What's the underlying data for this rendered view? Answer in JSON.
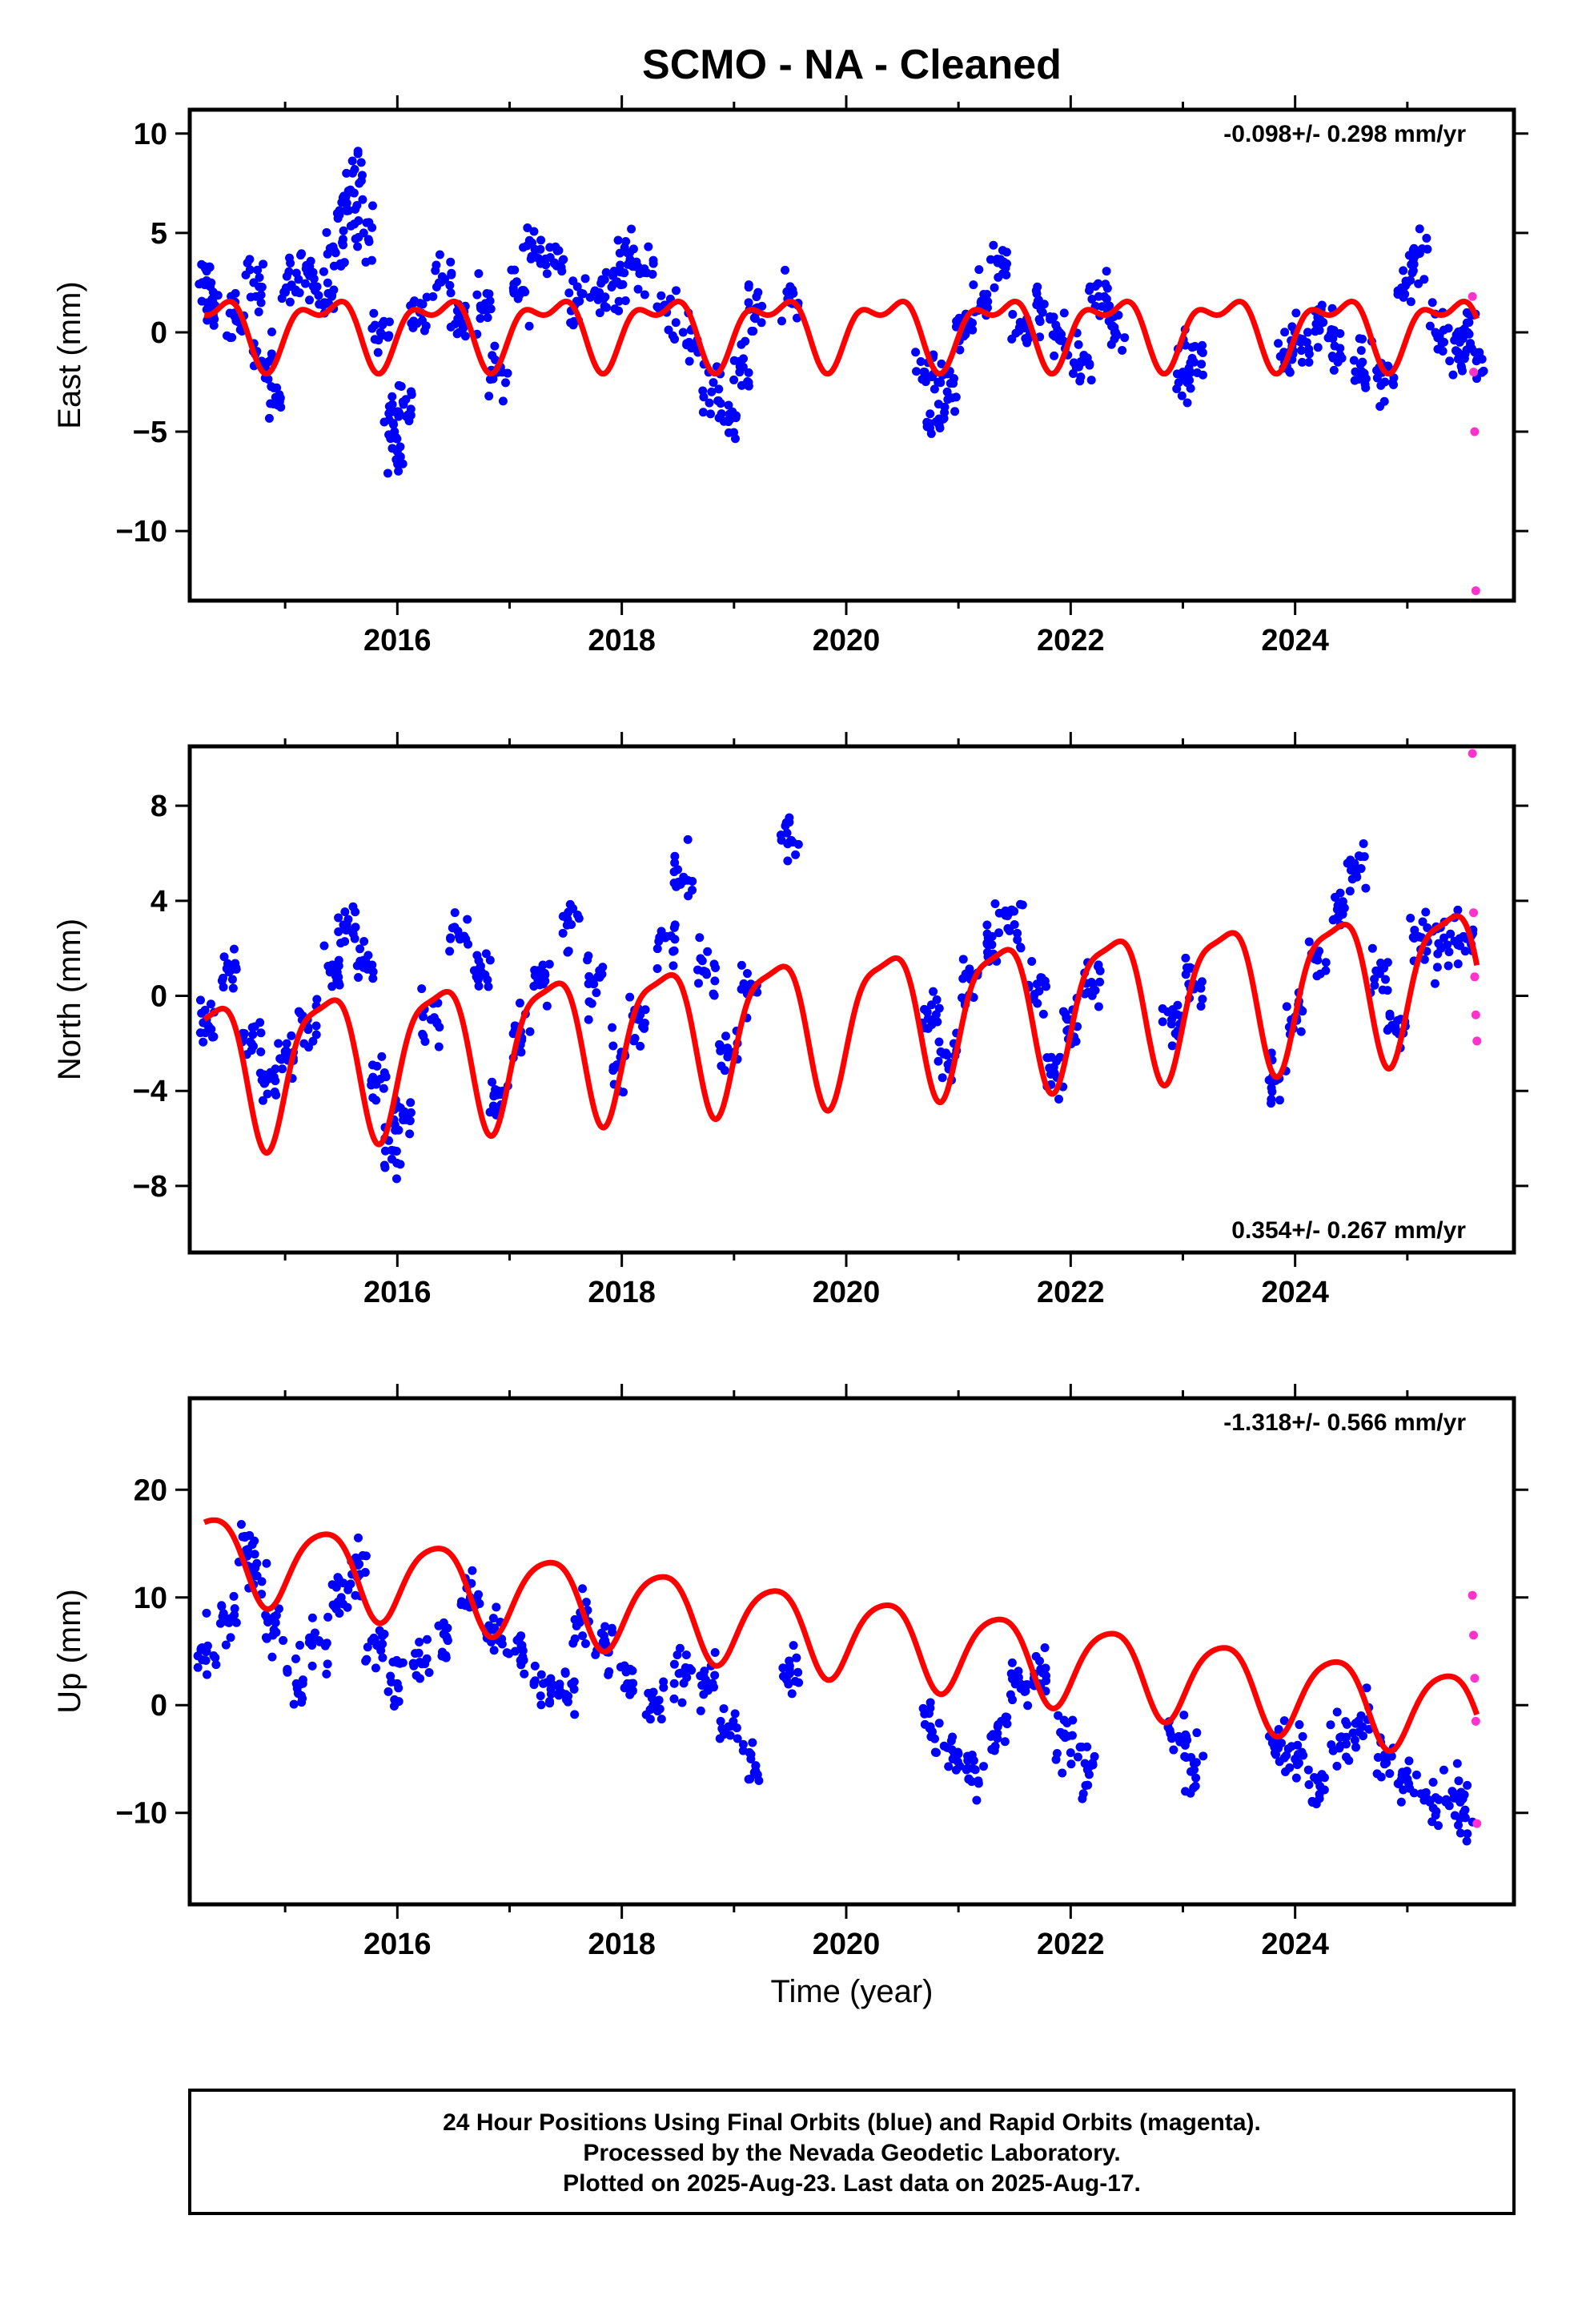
{
  "title": "SCMO  - NA - Cleaned",
  "colors": {
    "final": "#0000ff",
    "rapid": "#ff33cc",
    "model": "#ff0000",
    "frame": "#000000"
  },
  "xlabel": "Time (year)",
  "footer": {
    "line1": "24 Hour Positions Using Final Orbits (blue) and Rapid Orbits (magenta).",
    "line2": "Processed by the Nevada Geodetic Laboratory.",
    "line3": "Plotted on 2025-Aug-23. Last data on 2025-Aug-17."
  },
  "chart_data": [
    {
      "type": "scatter",
      "ylabel": "East (mm)",
      "rate_label": "-0.098+/- 0.298 mm/yr",
      "rate_position": "top-right",
      "xlim": [
        2014.15,
        2025.95
      ],
      "ylim": [
        -13.5,
        11.2
      ],
      "x_ticks": [
        2016,
        2018,
        2020,
        2022,
        2024
      ],
      "x_tick_labels": [
        "2016",
        "2018",
        "2020",
        "2022",
        "2024"
      ],
      "y_ticks": [
        10,
        5,
        0,
        -5,
        -10
      ],
      "y_tick_labels": [
        "10",
        "5",
        "0",
        "−5",
        "−10"
      ],
      "series": [
        {
          "role": "final-orbits-points",
          "x": [
            2014.3,
            2014.35,
            2014.55,
            2014.72,
            2014.8,
            2014.9,
            2015.05,
            2015.2,
            2015.35,
            2015.45,
            2015.55,
            2015.62,
            2015.7,
            2015.85,
            2015.95,
            2016.0,
            2016.05,
            2016.2,
            2016.4,
            2016.55,
            2016.75,
            2016.9,
            2017.1,
            2017.2,
            2017.4,
            2017.6,
            2017.8,
            2017.95,
            2018.05,
            2018.2,
            2018.4,
            2018.6,
            2018.8,
            2018.95,
            2019.05,
            2019.2,
            2019.5,
            2020.7,
            2020.8,
            2020.9,
            2021.05,
            2021.2,
            2021.35,
            2021.55,
            2021.75,
            2021.9,
            2022.1,
            2022.25,
            2022.4,
            2023.0,
            2023.1,
            2023.9,
            2024.05,
            2024.25,
            2024.4,
            2024.6,
            2024.8,
            2025.0,
            2025.1,
            2025.25,
            2025.45,
            2025.55,
            2025.6
          ],
          "y": [
            2.6,
            1.0,
            0.8,
            2.5,
            -1.5,
            -2.8,
            2.3,
            3.0,
            1.5,
            4.0,
            6.5,
            8.2,
            5.0,
            0.0,
            -4.0,
            -6.0,
            -3.5,
            1.0,
            2.8,
            0.5,
            1.2,
            -1.8,
            2.0,
            4.5,
            3.5,
            1.5,
            2.0,
            2.5,
            4.0,
            3.0,
            1.0,
            -0.5,
            -3.0,
            -4.5,
            -2.0,
            1.0,
            1.5,
            -2.0,
            -4.5,
            -3.0,
            0.5,
            1.5,
            3.5,
            0.5,
            1.0,
            0.0,
            -1.5,
            1.8,
            0.0,
            -2.0,
            -1.5,
            -1.0,
            -0.5,
            0.5,
            -0.8,
            -1.5,
            -2.5,
            2.5,
            4.0,
            0.0,
            -1.0,
            0.5,
            -1.0
          ]
        },
        {
          "role": "rapid-orbits-points",
          "x": [
            2025.58,
            2025.59,
            2025.6,
            2025.61
          ],
          "y": [
            1.8,
            -2.0,
            -5.0,
            -13.0
          ]
        },
        {
          "role": "seasonal-model-line",
          "amp_annual": 1.5,
          "amp_semiannual": 0.8,
          "offset": 0.2
        }
      ]
    },
    {
      "type": "scatter",
      "ylabel": "North (mm)",
      "rate_label": "0.354+/- 0.267 mm/yr",
      "rate_position": "bottom-right",
      "xlim": [
        2014.15,
        2025.95
      ],
      "ylim": [
        -10.8,
        10.5
      ],
      "x_ticks": [
        2016,
        2018,
        2020,
        2022,
        2024
      ],
      "x_tick_labels": [
        "2016",
        "2018",
        "2020",
        "2022",
        "2024"
      ],
      "y_ticks": [
        8,
        4,
        0,
        -4,
        -8
      ],
      "y_tick_labels": [
        "8",
        "4",
        "0",
        "−4",
        "−8"
      ],
      "series": [
        {
          "role": "final-orbits-points",
          "x": [
            2014.3,
            2014.5,
            2014.7,
            2014.85,
            2015.0,
            2015.2,
            2015.4,
            2015.55,
            2015.7,
            2015.85,
            2015.95,
            2016.05,
            2016.3,
            2016.55,
            2016.75,
            2016.9,
            2017.1,
            2017.3,
            2017.55,
            2017.75,
            2017.95,
            2018.15,
            2018.4,
            2018.55,
            2018.75,
            2018.95,
            2019.15,
            2019.5,
            2020.75,
            2020.9,
            2021.1,
            2021.3,
            2021.5,
            2021.7,
            2021.85,
            2022.0,
            2022.2,
            2022.9,
            2023.1,
            2023.85,
            2024.0,
            2024.2,
            2024.4,
            2024.55,
            2024.75,
            2024.9,
            2025.1,
            2025.3,
            2025.5
          ],
          "y": [
            -1.0,
            1.0,
            -2.0,
            -3.5,
            -2.5,
            -1.0,
            1.0,
            3.0,
            1.5,
            -3.5,
            -6.5,
            -5.0,
            -1.0,
            2.5,
            1.0,
            -4.0,
            -1.5,
            0.5,
            3.0,
            0.5,
            -3.0,
            -1.0,
            2.5,
            5.0,
            1.0,
            -2.5,
            0.5,
            6.5,
            -1.0,
            -2.5,
            1.0,
            2.5,
            3.0,
            0.5,
            -3.0,
            -1.0,
            0.5,
            -1.0,
            0.5,
            -3.5,
            -1.0,
            1.5,
            3.5,
            5.0,
            1.0,
            -1.5,
            2.5,
            2.0,
            2.5
          ]
        },
        {
          "role": "rapid-orbits-points",
          "x": [
            2025.58,
            2025.59,
            2025.6,
            2025.61,
            2025.62
          ],
          "y": [
            10.2,
            3.5,
            0.8,
            -0.8,
            -1.9
          ]
        },
        {
          "role": "seasonal-model-line",
          "amp_annual": 3.0,
          "amp_semiannual": 0.8,
          "offset": -1.0,
          "trend": 0.354
        }
      ]
    },
    {
      "type": "scatter",
      "ylabel": "Up (mm)",
      "rate_label": "-1.318+/- 0.566 mm/yr",
      "rate_position": "top-right",
      "xlim": [
        2014.15,
        2025.95
      ],
      "ylim": [
        -18.5,
        28.5
      ],
      "x_ticks": [
        2016,
        2018,
        2020,
        2022,
        2024
      ],
      "x_tick_labels": [
        "2016",
        "2018",
        "2020",
        "2022",
        "2024"
      ],
      "y_ticks": [
        20,
        10,
        0,
        -10
      ],
      "y_tick_labels": [
        "20",
        "10",
        "0",
        "−10"
      ],
      "series": [
        {
          "role": "final-orbits-points",
          "x": [
            2014.3,
            2014.5,
            2014.65,
            2014.75,
            2014.9,
            2015.1,
            2015.3,
            2015.5,
            2015.65,
            2015.8,
            2016.0,
            2016.2,
            2016.45,
            2016.65,
            2016.85,
            2017.05,
            2017.3,
            2017.5,
            2017.65,
            2017.85,
            2018.05,
            2018.3,
            2018.55,
            2018.75,
            2018.95,
            2019.15,
            2019.5,
            2020.75,
            2020.95,
            2021.15,
            2021.35,
            2021.55,
            2021.75,
            2021.95,
            2022.15,
            2022.95,
            2023.1,
            2023.85,
            2024.0,
            2024.2,
            2024.4,
            2024.6,
            2024.8,
            2025.0,
            2025.2,
            2025.4,
            2025.5
          ],
          "y": [
            5.0,
            8.0,
            14.0,
            12.0,
            7.0,
            2.0,
            6.0,
            10.0,
            13.0,
            6.0,
            2.0,
            4.0,
            6.0,
            10.0,
            7.0,
            5.0,
            2.0,
            1.0,
            8.0,
            6.0,
            2.0,
            0.0,
            3.0,
            2.0,
            -2.0,
            -5.0,
            3.0,
            -2.0,
            -5.0,
            -6.0,
            -2.0,
            2.0,
            3.0,
            -3.0,
            -6.0,
            -3.0,
            -6.0,
            -4.0,
            -5.0,
            -7.0,
            -3.0,
            -2.0,
            -5.0,
            -7.0,
            -9.0,
            -8.0,
            -10.0
          ]
        },
        {
          "role": "rapid-orbits-points",
          "x": [
            2025.58,
            2025.59,
            2025.6,
            2025.61,
            2025.62
          ],
          "y": [
            10.2,
            6.5,
            2.5,
            -1.5,
            -11.0
          ]
        },
        {
          "role": "seasonal-model-line",
          "amp_annual": 3.8,
          "amp_semiannual": 0.6,
          "offset": 6.5,
          "trend": -1.318
        }
      ]
    }
  ]
}
